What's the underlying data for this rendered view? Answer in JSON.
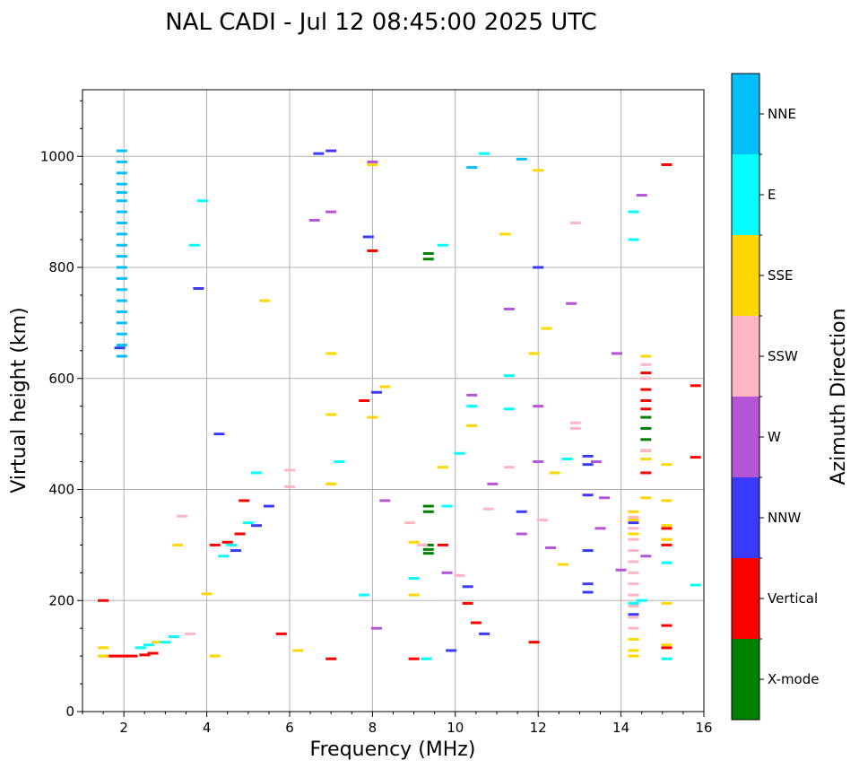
{
  "chart_data": {
    "type": "scatter",
    "title": "NAL CADI - Jul 12 08:45:00 2025 UTC",
    "xlabel": "Frequency (MHz)",
    "ylabel": "Virtual height (km)",
    "xlim": [
      1,
      16
    ],
    "ylim": [
      0,
      1120
    ],
    "xticks": [
      2,
      4,
      6,
      8,
      10,
      12,
      14,
      16
    ],
    "yticks": [
      0,
      200,
      400,
      600,
      800,
      1000
    ],
    "grid": true,
    "colorbar": {
      "label": "Azimuth Direction",
      "categories": [
        {
          "name": "X-mode",
          "color": "#008000"
        },
        {
          "name": "Vertical",
          "color": "#ff0000"
        },
        {
          "name": "NNW",
          "color": "#3b3bff"
        },
        {
          "name": "W",
          "color": "#b455d6"
        },
        {
          "name": "SSW",
          "color": "#ffb6c1"
        },
        {
          "name": "SSE",
          "color": "#ffd700"
        },
        {
          "name": "E",
          "color": "#00ffff"
        },
        {
          "name": "NNE",
          "color": "#00bfff"
        }
      ]
    },
    "series": [
      {
        "name": "X-mode",
        "points": [
          [
            9.35,
            825
          ],
          [
            9.35,
            815
          ],
          [
            9.35,
            370
          ],
          [
            9.35,
            360
          ],
          [
            9.35,
            300
          ],
          [
            9.35,
            292
          ],
          [
            9.35,
            285
          ],
          [
            14.6,
            530
          ],
          [
            14.6,
            510
          ],
          [
            14.6,
            490
          ],
          [
            14.6,
            470
          ]
        ]
      },
      {
        "name": "Vertical",
        "points": [
          [
            1.5,
            200
          ],
          [
            1.6,
            100
          ],
          [
            1.8,
            100
          ],
          [
            2.0,
            100
          ],
          [
            2.2,
            100
          ],
          [
            2.5,
            102
          ],
          [
            2.7,
            105
          ],
          [
            4.2,
            300
          ],
          [
            4.5,
            305
          ],
          [
            4.8,
            320
          ],
          [
            4.9,
            380
          ],
          [
            5.8,
            140
          ],
          [
            7.0,
            95
          ],
          [
            7.8,
            560
          ],
          [
            8.0,
            830
          ],
          [
            9.0,
            95
          ],
          [
            9.7,
            300
          ],
          [
            10.3,
            195
          ],
          [
            10.5,
            160
          ],
          [
            11.9,
            125
          ],
          [
            14.6,
            610
          ],
          [
            14.6,
            580
          ],
          [
            14.6,
            560
          ],
          [
            14.6,
            545
          ],
          [
            14.6,
            430
          ],
          [
            15.1,
            985
          ],
          [
            15.1,
            330
          ],
          [
            15.1,
            300
          ],
          [
            15.1,
            155
          ],
          [
            15.1,
            115
          ],
          [
            15.8,
            587
          ],
          [
            15.8,
            458
          ]
        ]
      },
      {
        "name": "NNW",
        "points": [
          [
            1.9,
            655
          ],
          [
            3.8,
            762
          ],
          [
            4.3,
            500
          ],
          [
            4.7,
            290
          ],
          [
            5.2,
            335
          ],
          [
            5.5,
            370
          ],
          [
            6.7,
            1005
          ],
          [
            7.0,
            1010
          ],
          [
            7.9,
            855
          ],
          [
            8.1,
            575
          ],
          [
            9.9,
            110
          ],
          [
            10.3,
            225
          ],
          [
            10.7,
            140
          ],
          [
            11.6,
            360
          ],
          [
            12.0,
            800
          ],
          [
            13.2,
            460
          ],
          [
            13.2,
            445
          ],
          [
            13.2,
            390
          ],
          [
            13.2,
            290
          ],
          [
            13.2,
            230
          ],
          [
            13.2,
            215
          ],
          [
            14.3,
            175
          ],
          [
            14.3,
            340
          ]
        ]
      },
      {
        "name": "W",
        "points": [
          [
            6.6,
            885
          ],
          [
            7.0,
            900
          ],
          [
            8.0,
            990
          ],
          [
            8.1,
            150
          ],
          [
            8.3,
            380
          ],
          [
            9.8,
            250
          ],
          [
            10.4,
            570
          ],
          [
            10.9,
            410
          ],
          [
            11.3,
            725
          ],
          [
            11.6,
            320
          ],
          [
            12.0,
            550
          ],
          [
            12.0,
            450
          ],
          [
            12.3,
            295
          ],
          [
            12.8,
            735
          ],
          [
            13.4,
            450
          ],
          [
            13.5,
            330
          ],
          [
            13.6,
            385
          ],
          [
            13.9,
            645
          ],
          [
            14.0,
            255
          ],
          [
            14.5,
            930
          ],
          [
            14.6,
            280
          ]
        ]
      },
      {
        "name": "SSW",
        "points": [
          [
            3.6,
            140
          ],
          [
            3.4,
            352
          ],
          [
            6.0,
            405
          ],
          [
            6.0,
            435
          ],
          [
            8.9,
            340
          ],
          [
            9.2,
            300
          ],
          [
            10.1,
            245
          ],
          [
            10.8,
            365
          ],
          [
            11.3,
            440
          ],
          [
            12.1,
            345
          ],
          [
            12.9,
            880
          ],
          [
            12.9,
            520
          ],
          [
            12.9,
            510
          ],
          [
            14.3,
            350
          ],
          [
            14.3,
            330
          ],
          [
            14.3,
            310
          ],
          [
            14.3,
            290
          ],
          [
            14.3,
            270
          ],
          [
            14.3,
            250
          ],
          [
            14.3,
            230
          ],
          [
            14.3,
            210
          ],
          [
            14.3,
            190
          ],
          [
            14.3,
            170
          ],
          [
            14.3,
            150
          ],
          [
            14.6,
            625
          ],
          [
            14.6,
            600
          ],
          [
            14.6,
            470
          ]
        ]
      },
      {
        "name": "SSE",
        "points": [
          [
            1.5,
            115
          ],
          [
            1.5,
            100
          ],
          [
            2.8,
            125
          ],
          [
            3.3,
            300
          ],
          [
            4.0,
            212
          ],
          [
            4.2,
            100
          ],
          [
            5.4,
            740
          ],
          [
            6.2,
            110
          ],
          [
            7.0,
            645
          ],
          [
            7.0,
            410
          ],
          [
            7.0,
            535
          ],
          [
            8.0,
            530
          ],
          [
            8.0,
            985
          ],
          [
            8.3,
            585
          ],
          [
            9.0,
            210
          ],
          [
            9.0,
            305
          ],
          [
            9.7,
            440
          ],
          [
            10.4,
            515
          ],
          [
            11.2,
            860
          ],
          [
            11.9,
            645
          ],
          [
            12.0,
            975
          ],
          [
            12.2,
            690
          ],
          [
            12.4,
            430
          ],
          [
            12.6,
            265
          ],
          [
            14.3,
            360
          ],
          [
            14.3,
            345
          ],
          [
            14.3,
            320
          ],
          [
            14.3,
            130
          ],
          [
            14.3,
            110
          ],
          [
            14.3,
            100
          ],
          [
            14.6,
            385
          ],
          [
            14.6,
            640
          ],
          [
            14.6,
            455
          ],
          [
            15.1,
            445
          ],
          [
            15.1,
            380
          ],
          [
            15.1,
            335
          ],
          [
            15.1,
            310
          ],
          [
            15.1,
            195
          ],
          [
            15.1,
            120
          ]
        ]
      },
      {
        "name": "E",
        "points": [
          [
            2.4,
            115
          ],
          [
            2.6,
            120
          ],
          [
            3.0,
            125
          ],
          [
            3.2,
            135
          ],
          [
            3.7,
            840
          ],
          [
            3.9,
            920
          ],
          [
            4.4,
            280
          ],
          [
            4.6,
            300
          ],
          [
            5.0,
            340
          ],
          [
            5.2,
            430
          ],
          [
            7.2,
            450
          ],
          [
            7.8,
            210
          ],
          [
            9.0,
            240
          ],
          [
            9.3,
            95
          ],
          [
            9.7,
            840
          ],
          [
            9.8,
            370
          ],
          [
            10.1,
            465
          ],
          [
            10.4,
            550
          ],
          [
            10.7,
            1005
          ],
          [
            11.3,
            605
          ],
          [
            11.3,
            545
          ],
          [
            12.7,
            455
          ],
          [
            14.3,
            850
          ],
          [
            14.3,
            900
          ],
          [
            14.3,
            195
          ],
          [
            14.5,
            200
          ],
          [
            15.1,
            268
          ],
          [
            15.1,
            95
          ],
          [
            15.8,
            228
          ]
        ]
      },
      {
        "name": "NNE",
        "points": [
          [
            1.95,
            1010
          ],
          [
            1.95,
            990
          ],
          [
            1.95,
            970
          ],
          [
            1.95,
            950
          ],
          [
            1.95,
            935
          ],
          [
            1.95,
            920
          ],
          [
            1.95,
            900
          ],
          [
            1.95,
            880
          ],
          [
            1.95,
            860
          ],
          [
            1.95,
            840
          ],
          [
            1.95,
            820
          ],
          [
            1.95,
            800
          ],
          [
            1.95,
            780
          ],
          [
            1.95,
            760
          ],
          [
            1.95,
            740
          ],
          [
            1.95,
            720
          ],
          [
            1.95,
            700
          ],
          [
            1.95,
            680
          ],
          [
            1.95,
            660
          ],
          [
            1.95,
            640
          ],
          [
            10.4,
            980
          ],
          [
            11.6,
            995
          ]
        ]
      }
    ]
  }
}
